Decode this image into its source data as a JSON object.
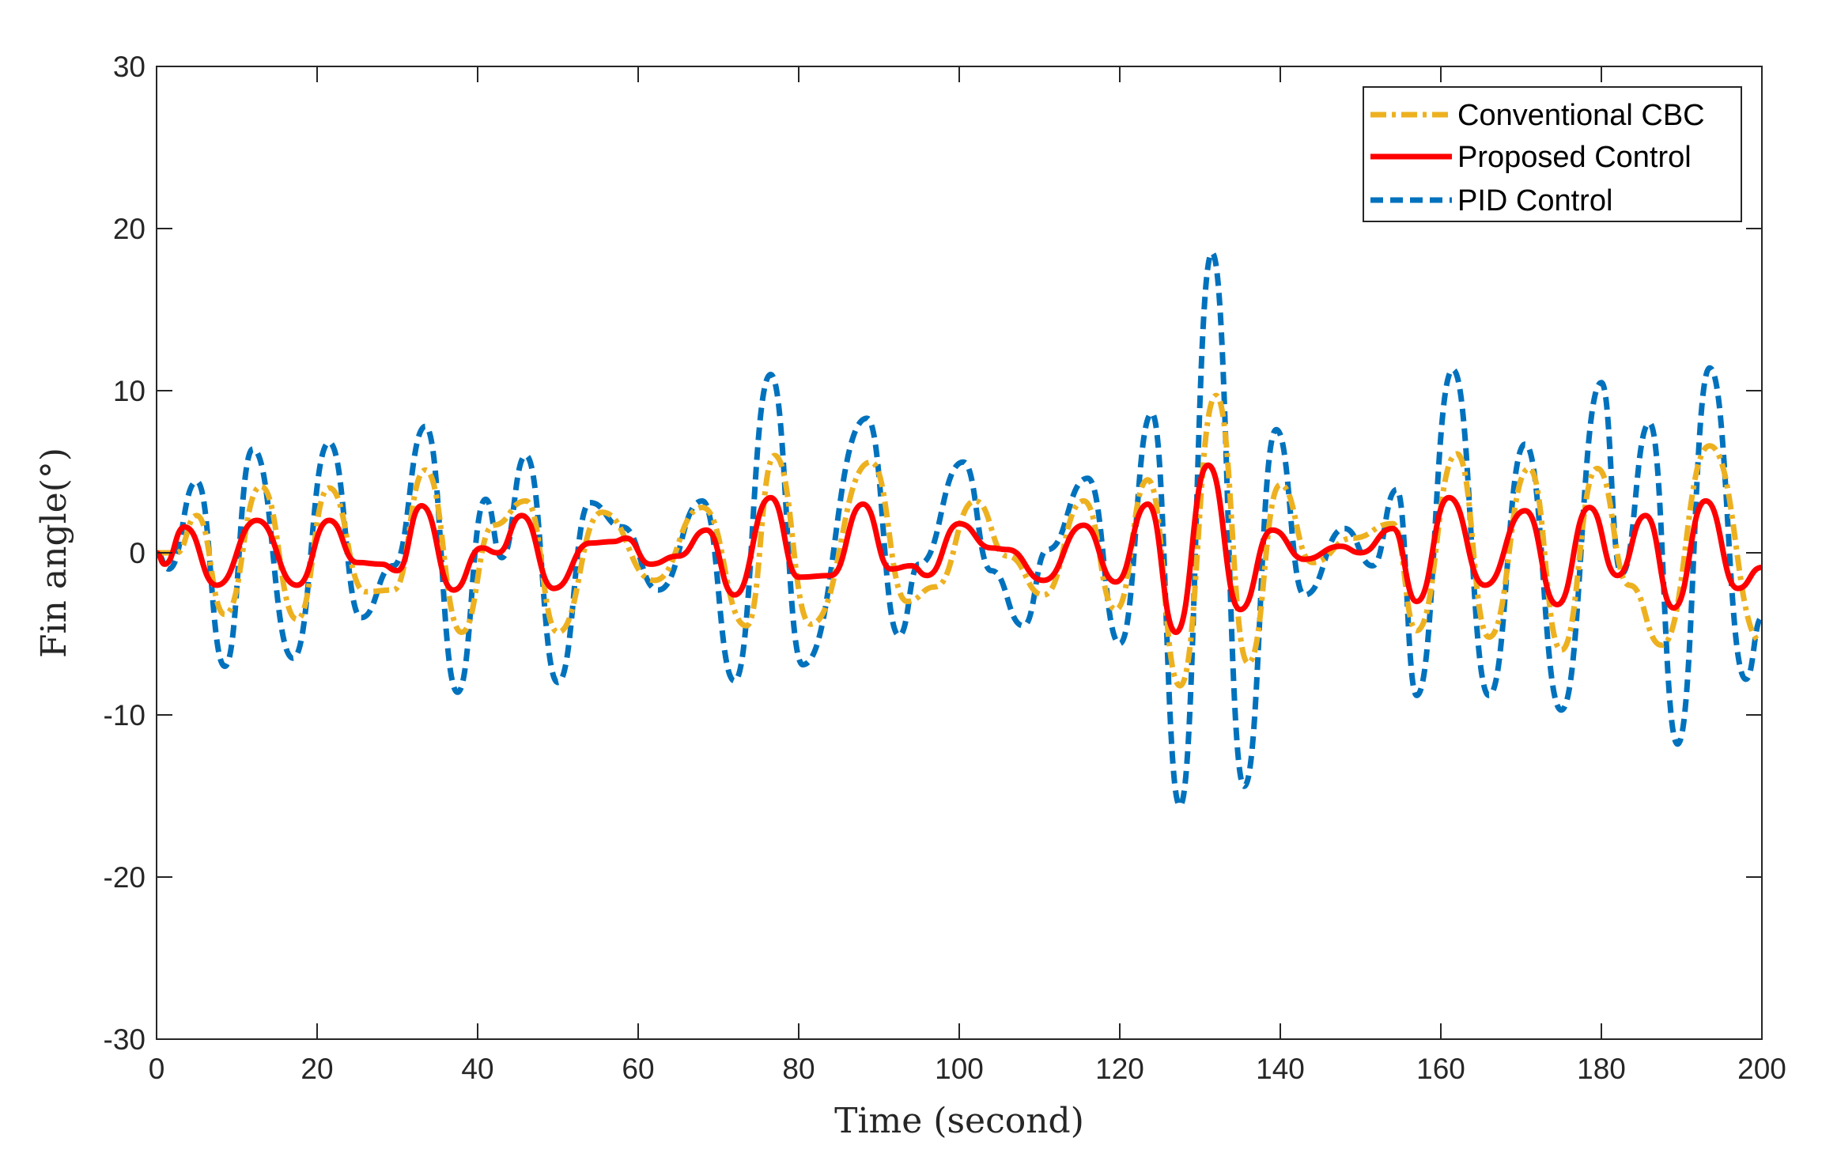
{
  "chart_data": {
    "type": "line",
    "title": "",
    "xlabel": "Time (second)",
    "ylabel": "Fin angle(°)",
    "xlim": [
      0,
      200
    ],
    "ylim": [
      -30,
      30
    ],
    "xticks": [
      0,
      20,
      40,
      60,
      80,
      100,
      120,
      140,
      160,
      180,
      200
    ],
    "yticks": [
      -30,
      -20,
      -10,
      0,
      10,
      20,
      30
    ],
    "xtick_labels": [
      "0",
      "20",
      "40",
      "60",
      "80",
      "100",
      "120",
      "140",
      "160",
      "180",
      "200"
    ],
    "ytick_labels": [
      "-30",
      "-20",
      "-10",
      "0",
      "10",
      "20",
      "30"
    ],
    "grid": false,
    "legend_position": "top-right",
    "series": [
      {
        "name": "Conventional CBC",
        "color": "#EDB120",
        "style": "dash-dot",
        "x": [
          0,
          2.5,
          5,
          8.5,
          13,
          17.5,
          21.5,
          26,
          29.5,
          33.5,
          38,
          42,
          46,
          50,
          55.5,
          62,
          68,
          73.5,
          77,
          81.5,
          89,
          93.5,
          97,
          102,
          106,
          110.5,
          115.5,
          119.5,
          123.5,
          127.5,
          132,
          136,
          140,
          144,
          149,
          154,
          157,
          162,
          166,
          171,
          175,
          179.5,
          183.5,
          187.5,
          193.5,
          200
        ],
        "values": [
          0,
          0,
          2.3,
          -3.8,
          4.1,
          -4.1,
          4.0,
          -2.4,
          -2.3,
          5.1,
          -4.9,
          1.7,
          3.2,
          -4.9,
          2.5,
          -1.7,
          2.8,
          -4.5,
          6.0,
          -4.4,
          5.6,
          -3.0,
          -2.1,
          3.2,
          -0.2,
          -2.6,
          3.2,
          -3.5,
          4.5,
          -8.2,
          9.7,
          -6.8,
          4.2,
          -0.6,
          0.9,
          1.8,
          -4.8,
          6.1,
          -5.2,
          5.2,
          -6.0,
          5.2,
          -2.0,
          -5.7,
          6.6,
          -5.5
        ]
      },
      {
        "name": "Proposed Control",
        "color": "#FF0000",
        "style": "solid",
        "x": [
          0,
          1,
          3.5,
          7.5,
          12.5,
          17.5,
          21.5,
          25,
          28,
          30,
          33,
          37,
          40.5,
          42.5,
          45.5,
          49.5,
          54,
          57,
          58.5,
          61.5,
          65,
          68.5,
          72,
          76.5,
          80,
          84,
          88,
          91.5,
          94,
          96,
          100,
          104,
          106,
          110.5,
          115.5,
          119.5,
          123.5,
          127,
          131,
          135,
          139,
          143,
          147.5,
          150,
          154,
          157,
          161,
          165.5,
          170.5,
          174.5,
          178.5,
          182,
          185.5,
          189,
          193,
          197,
          200
        ],
        "values": [
          0,
          -0.7,
          1.6,
          -2.0,
          2.0,
          -2.0,
          2.0,
          -0.6,
          -0.7,
          -1.1,
          2.9,
          -2.3,
          0.3,
          0.0,
          2.3,
          -2.2,
          0.6,
          0.7,
          0.9,
          -0.7,
          -0.2,
          1.4,
          -2.6,
          3.4,
          -1.5,
          -1.4,
          3.0,
          -1.0,
          -0.8,
          -1.4,
          1.8,
          0.3,
          0.2,
          -1.7,
          1.7,
          -1.8,
          3.0,
          -4.9,
          5.4,
          -3.5,
          1.4,
          -0.4,
          0.4,
          0.0,
          1.5,
          -3.0,
          3.4,
          -2.0,
          2.6,
          -3.2,
          2.8,
          -1.4,
          2.3,
          -3.4,
          3.2,
          -2.2,
          -0.9
        ]
      },
      {
        "name": "PID Control",
        "color": "#0072BD",
        "style": "dash",
        "x": [
          0,
          1.5,
          5,
          8.5,
          12,
          17,
          21.5,
          25.5,
          29.5,
          33.5,
          37.5,
          41,
          43,
          46,
          50,
          54,
          58,
          62.5,
          68,
          72,
          76.5,
          80.5,
          88.5,
          92.5,
          95,
          100.5,
          104,
          108,
          111,
          116,
          120,
          124,
          127.5,
          131.5,
          135.5,
          139.5,
          143,
          148,
          151.5,
          154.5,
          157,
          161.5,
          166,
          170.5,
          175,
          180,
          182.5,
          186,
          189.5,
          193.5,
          198,
          200
        ],
        "values": [
          0,
          -1.0,
          4.4,
          -7.0,
          6.4,
          -6.5,
          6.8,
          -4.0,
          -0.8,
          7.8,
          -8.6,
          3.3,
          -0.3,
          6.0,
          -8.0,
          3.1,
          1.6,
          -2.3,
          3.2,
          -7.9,
          11.0,
          -6.9,
          8.3,
          -5.1,
          -0.7,
          5.6,
          -1.1,
          -4.5,
          0.2,
          4.6,
          -5.6,
          8.6,
          -15.6,
          18.5,
          -14.4,
          7.6,
          -2.6,
          1.5,
          -0.8,
          3.9,
          -8.8,
          11.3,
          -8.8,
          6.7,
          -9.7,
          10.5,
          -1.3,
          8.0,
          -11.8,
          11.4,
          -7.8,
          -4.0
        ]
      }
    ]
  }
}
